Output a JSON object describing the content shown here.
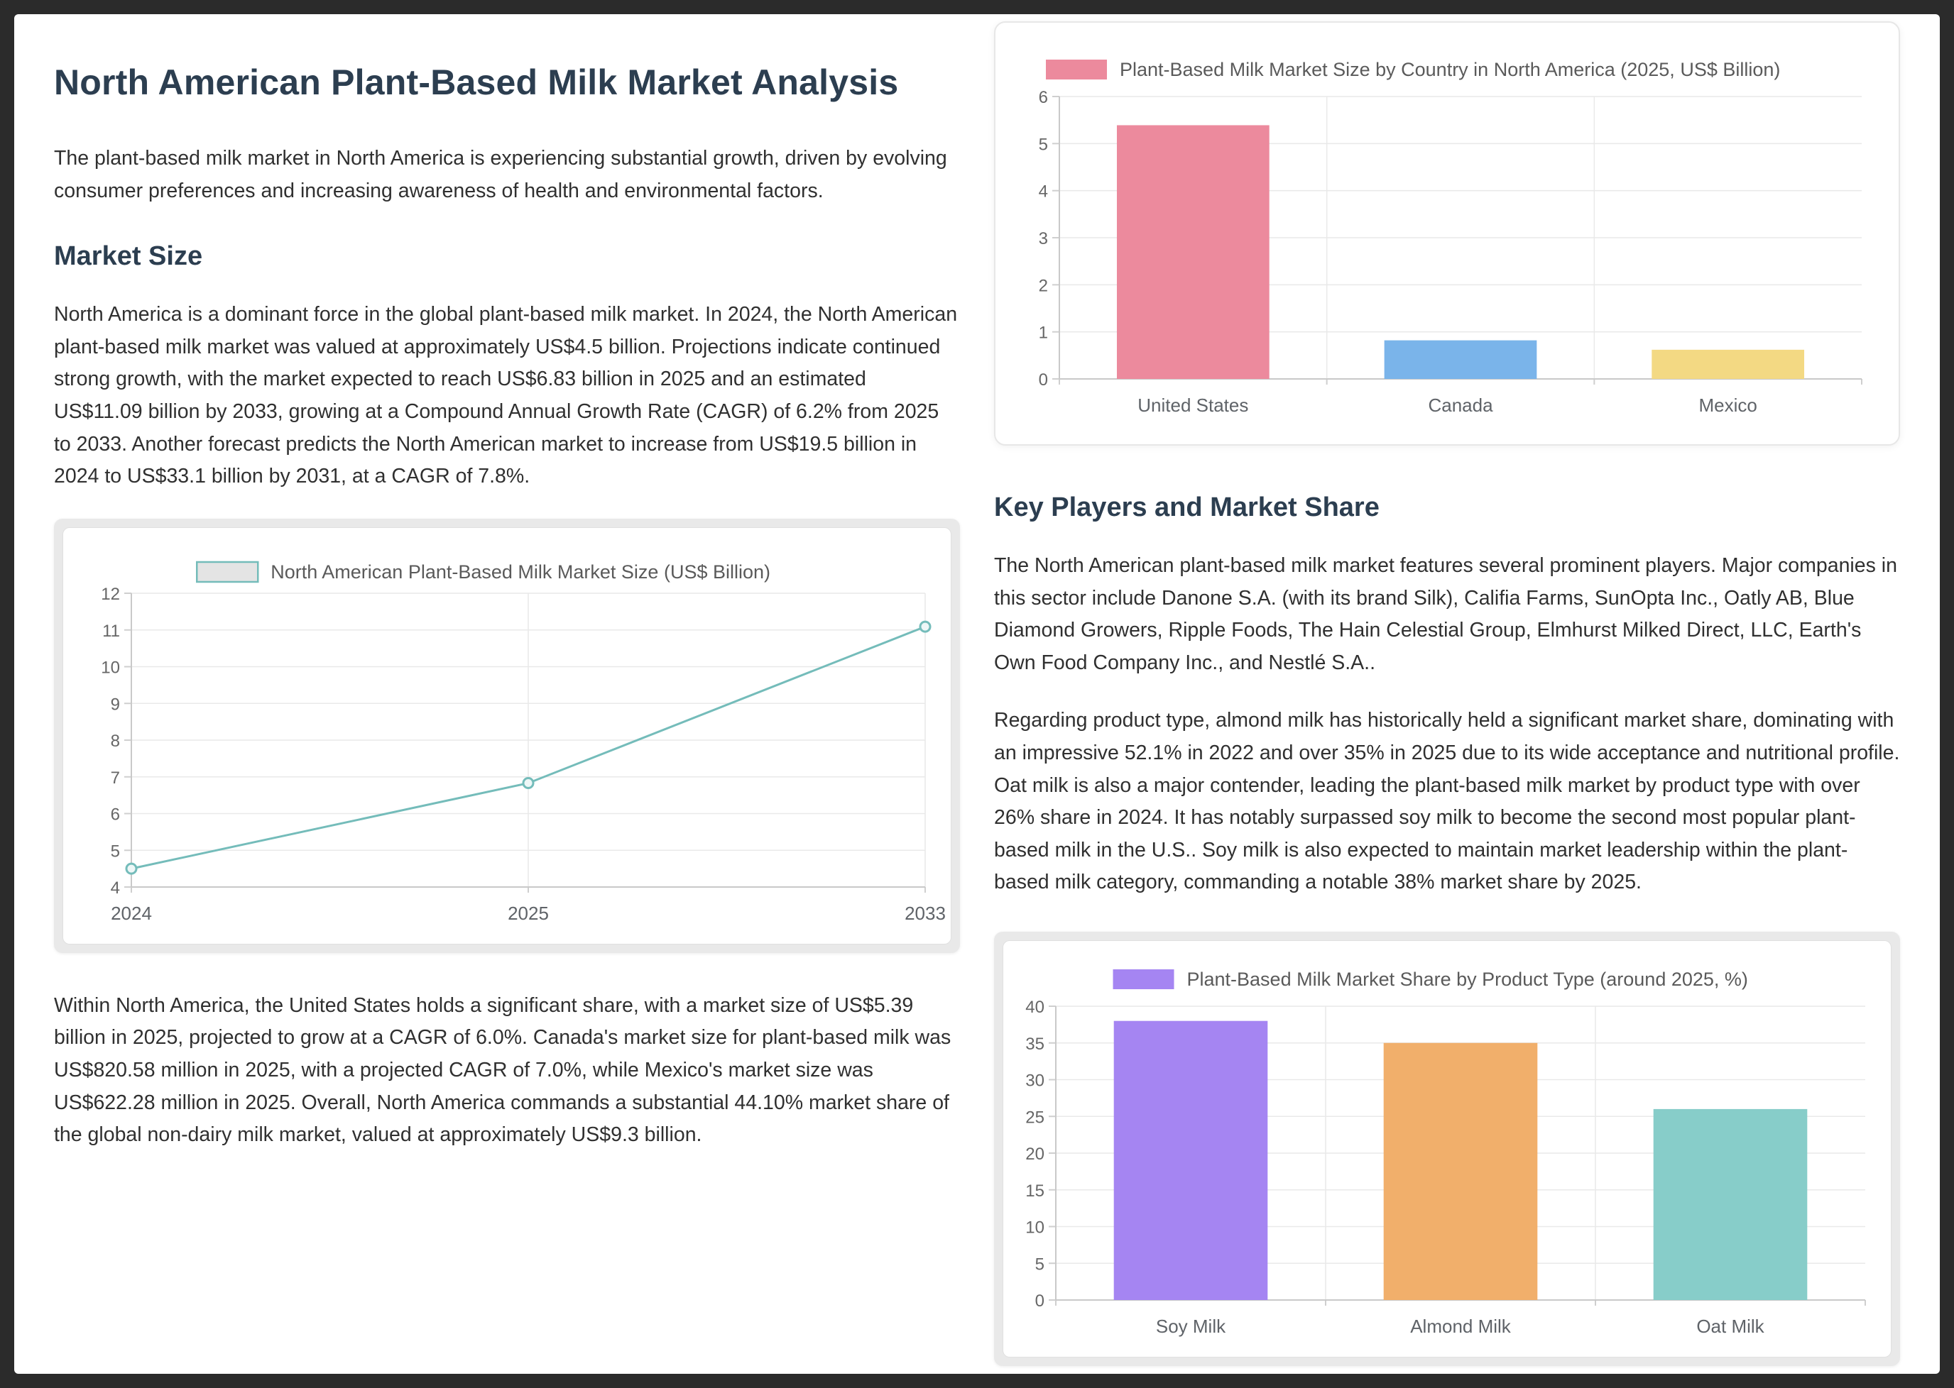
{
  "page": {
    "title": "North American Plant-Based Milk Market Analysis",
    "intro": "The plant-based milk market in North America is experiencing substantial growth, driven by evolving consumer preferences and increasing awareness of health and environmental factors.",
    "sections": {
      "market_size": {
        "heading": "Market Size",
        "p1": "North America is a dominant force in the global plant-based milk market. In 2024, the North American plant-based milk market was valued at approximately US$4.5 billion. Projections indicate continued strong growth, with the market expected to reach US$6.83 billion in 2025 and an estimated US$11.09 billion by 2033, growing at a Compound Annual Growth Rate (CAGR) of 6.2% from 2025 to 2033. Another forecast predicts the North American market to increase from US$19.5 billion in 2024 to US$33.1 billion by 2031, at a CAGR of 7.8%.",
        "p2": "Within North America, the United States holds a significant share, with a market size of US$5.39 billion in 2025, projected to grow at a CAGR of 6.0%. Canada's market size for plant-based milk was US$820.58 million in 2025, with a projected CAGR of 7.0%, while Mexico's market size was US$622.28 million in 2025. Overall, North America commands a substantial 44.10% market share of the global non-dairy milk market, valued at approximately US$9.3 billion."
      },
      "key_players": {
        "heading": "Key Players and Market Share",
        "p1": "The North American plant-based milk market features several prominent players. Major companies in this sector include Danone S.A. (with its brand Silk), Califia Farms, SunOpta Inc., Oatly AB, Blue Diamond Growers, Ripple Foods, The Hain Celestial Group, Elmhurst Milked Direct, LLC, Earth's Own Food Company Inc., and Nestlé S.A..",
        "p2": "Regarding product type, almond milk has historically held a significant market share, dominating with an impressive 52.1% in 2022 and over 35% in 2025 due to its wide acceptance and nutritional profile. Oat milk is also a major contender, leading the plant-based milk market by product type with over 26% share in 2024. It has notably surpassed soy milk to become the second most popular plant-based milk in the U.S.. Soy milk is also expected to maintain market leadership within the plant-based milk category, commanding a notable 38% market share by 2025."
      }
    }
  },
  "colors": {
    "page_background": "#2b2b2b",
    "panel_background": "#ffffff",
    "heading": "#2c3e50",
    "body_text": "#303030",
    "grid_line": "#e9e9e9",
    "axis_line": "#c9c9c9",
    "chart_frame": "#e9e9e9"
  },
  "chart_data": [
    {
      "id": "market-size-line",
      "type": "line",
      "title": "North American Plant-Based Milk Market Size (US$ Billion)",
      "x": [
        "2024",
        "2025",
        "2033"
      ],
      "values": [
        4.5,
        6.83,
        11.09
      ],
      "ylim": [
        4,
        12
      ],
      "ytick_step": 1,
      "line_color": "#74bcba",
      "marker_fill": "#eef7f7",
      "legend_fill": "#e4e4e4",
      "grid": true,
      "legend_position": "top"
    },
    {
      "id": "country-bar",
      "type": "bar",
      "title": "Plant-Based Milk Market Size by Country in North America (2025, US$ Billion)",
      "categories": [
        "United States",
        "Canada",
        "Mexico"
      ],
      "values": [
        5.39,
        0.82,
        0.62
      ],
      "colors": [
        "#ec8a9d",
        "#7ab4ea",
        "#f3d983"
      ],
      "ylim": [
        0,
        6
      ],
      "ytick_step": 1,
      "grid": true,
      "legend_position": "top"
    },
    {
      "id": "product-bar",
      "type": "bar",
      "title": "Plant-Based Milk Market Share by Product Type (around 2025, %)",
      "categories": [
        "Soy Milk",
        "Almond Milk",
        "Oat Milk"
      ],
      "values": [
        38,
        35,
        26
      ],
      "colors": [
        "#a585f2",
        "#f1af6b",
        "#87cdc9"
      ],
      "ylim": [
        0,
        40
      ],
      "ytick_step": 5,
      "grid": true,
      "legend_position": "top"
    }
  ]
}
